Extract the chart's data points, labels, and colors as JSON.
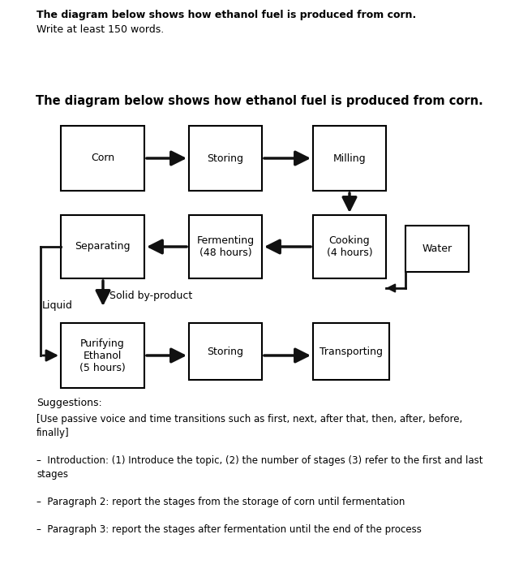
{
  "title": "The diagram below shows how ethanol fuel is produced from corn.",
  "header_bold": "The diagram below shows how ethanol fuel is produced from corn.",
  "header_normal": "Write at least 150 words.",
  "bg_color": "#ffffff",
  "box_color": "#000000",
  "box_face": "#ffffff",
  "suggestions_title": "Suggestions:",
  "sugg_lines": [
    "[Use passive voice and time transitions such as first, next, after that, then, after, before,",
    "finally]",
    "",
    "–  Introduction: (1) Introduce the topic, (2) the number of stages (3) refer to the first and last",
    "stages",
    "",
    "–  Paragraph 2: report the stages from the storage of corn until fermentation",
    "",
    "–  Paragraph 3: report the stages after fermentation until the end of the process"
  ]
}
